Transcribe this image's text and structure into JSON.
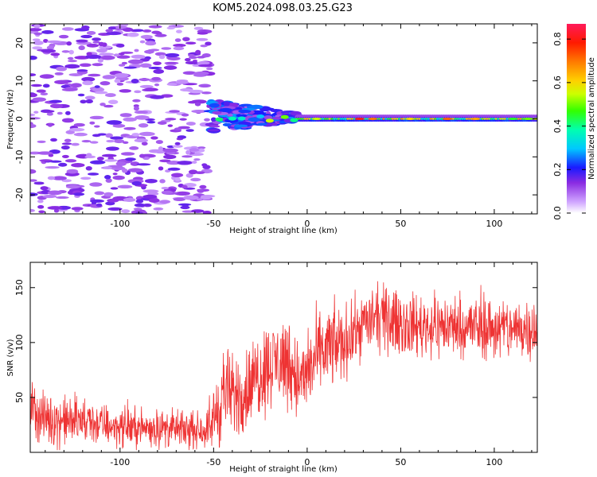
{
  "title": "KOM5.2024.098.03.25.G23",
  "chart_data": [
    {
      "type": "heatmap",
      "xlabel": "Height of straight line (km)",
      "ylabel": "Frequency (Hz)",
      "xlim": [
        -148,
        123
      ],
      "ylim": [
        -25,
        25
      ],
      "xticks": [
        -100,
        -50,
        0,
        50,
        100
      ],
      "xtick_labels": [
        "-100",
        "-50",
        "0",
        "50",
        "100"
      ],
      "yticks": [
        20,
        10,
        0,
        -10,
        -20
      ],
      "ytick_labels": [
        "20",
        "10",
        "0",
        "-10",
        "-20"
      ],
      "colorbar": {
        "label": "Normalized spectral amplitude",
        "range": [
          0,
          0.87
        ],
        "ticks": [
          0.0,
          0.2,
          0.4,
          0.6,
          0.8
        ],
        "tick_labels": [
          "0.0",
          "0.2",
          "0.4",
          "0.6",
          "0.8"
        ],
        "colormap": "rainbow"
      },
      "features": [
        {
          "name": "scattered-noise",
          "x_range": [
            -148,
            -52
          ],
          "y_range": [
            -25,
            25
          ],
          "amplitude": 0.12
        },
        {
          "name": "emerging-signal",
          "x_range": [
            -52,
            -5
          ],
          "y_range": [
            -4,
            5
          ],
          "amplitude": 0.3
        },
        {
          "name": "narrowband-carrier",
          "x_range": [
            -5,
            123
          ],
          "y_range": [
            -1,
            1
          ],
          "amplitude": 0.85
        }
      ],
      "grid": false
    },
    {
      "type": "line",
      "xlabel": "Height of straight line (km)",
      "ylabel": "SNR (v/v)",
      "xlim": [
        -148,
        123
      ],
      "ylim": [
        0,
        173
      ],
      "xticks": [
        -100,
        -50,
        0,
        50,
        100
      ],
      "xtick_labels": [
        "-100",
        "-50",
        "0",
        "50",
        "100"
      ],
      "yticks": [
        50,
        100,
        150
      ],
      "ytick_labels": [
        "50",
        "100",
        "150"
      ],
      "color": "#ee3333",
      "series": [
        {
          "x": [
            -148,
            -140,
            -120,
            -100,
            -80,
            -60,
            -52,
            -47,
            -44,
            -40,
            -30,
            -25,
            -20,
            -10,
            -3,
            0,
            5,
            10,
            20,
            25,
            30,
            40,
            50,
            60,
            80,
            100,
            110,
            123
          ],
          "mean": [
            40,
            30,
            28,
            23,
            22,
            20,
            22,
            45,
            58,
            50,
            60,
            75,
            80,
            85,
            60,
            75,
            85,
            95,
            100,
            108,
            118,
            122,
            118,
            115,
            115,
            113,
            112,
            115
          ],
          "spread": [
            25,
            25,
            22,
            18,
            18,
            16,
            18,
            45,
            40,
            40,
            40,
            45,
            40,
            45,
            40,
            40,
            40,
            40,
            35,
            30,
            30,
            30,
            30,
            30,
            30,
            30,
            30,
            30
          ]
        }
      ],
      "grid": false
    }
  ]
}
